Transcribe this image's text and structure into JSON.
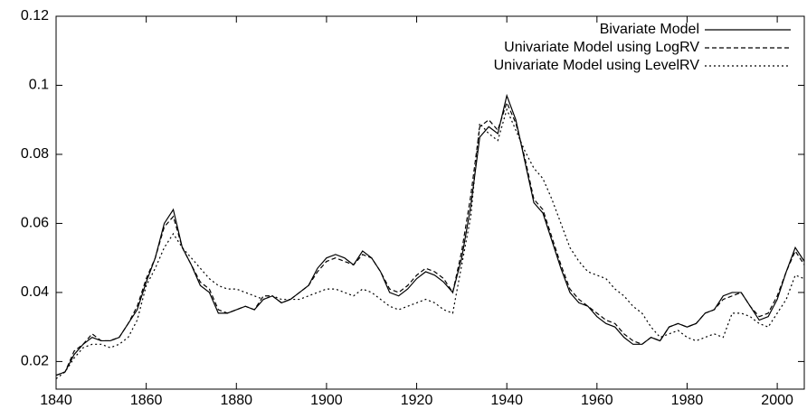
{
  "chart_data": {
    "type": "line",
    "x": [
      1840,
      1842,
      1844,
      1846,
      1848,
      1850,
      1852,
      1854,
      1856,
      1858,
      1860,
      1862,
      1864,
      1866,
      1868,
      1870,
      1872,
      1874,
      1876,
      1878,
      1880,
      1882,
      1884,
      1886,
      1888,
      1890,
      1892,
      1894,
      1896,
      1898,
      1900,
      1902,
      1904,
      1906,
      1908,
      1910,
      1912,
      1914,
      1916,
      1918,
      1920,
      1922,
      1924,
      1926,
      1928,
      1930,
      1932,
      1934,
      1936,
      1938,
      1940,
      1942,
      1944,
      1946,
      1948,
      1950,
      1952,
      1954,
      1956,
      1958,
      1960,
      1962,
      1964,
      1966,
      1968,
      1970,
      1972,
      1974,
      1976,
      1978,
      1980,
      1982,
      1984,
      1986,
      1988,
      1990,
      1992,
      1994,
      1996,
      1998,
      2000,
      2002,
      2004,
      2006
    ],
    "series": [
      {
        "name": "Bivariate Model",
        "color": "#000000",
        "dash": "solid",
        "values": [
          0.016,
          0.017,
          0.022,
          0.025,
          0.027,
          0.026,
          0.026,
          0.027,
          0.031,
          0.035,
          0.043,
          0.05,
          0.06,
          0.064,
          0.053,
          0.048,
          0.042,
          0.04,
          0.034,
          0.034,
          0.035,
          0.036,
          0.035,
          0.038,
          0.039,
          0.037,
          0.038,
          0.04,
          0.042,
          0.047,
          0.05,
          0.051,
          0.05,
          0.048,
          0.052,
          0.05,
          0.046,
          0.04,
          0.039,
          0.041,
          0.044,
          0.046,
          0.045,
          0.043,
          0.04,
          0.05,
          0.065,
          0.085,
          0.088,
          0.086,
          0.097,
          0.09,
          0.078,
          0.066,
          0.063,
          0.055,
          0.047,
          0.04,
          0.037,
          0.036,
          0.033,
          0.031,
          0.03,
          0.027,
          0.025,
          0.025,
          0.027,
          0.026,
          0.03,
          0.031,
          0.03,
          0.031,
          0.034,
          0.035,
          0.039,
          0.04,
          0.04,
          0.036,
          0.032,
          0.033,
          0.038,
          0.046,
          0.053,
          0.049
        ]
      },
      {
        "name": "Univariate Model using LogRV",
        "color": "#000000",
        "dash": "dashed",
        "values": [
          0.016,
          0.017,
          0.023,
          0.025,
          0.028,
          0.026,
          0.026,
          0.027,
          0.031,
          0.036,
          0.044,
          0.05,
          0.059,
          0.062,
          0.053,
          0.048,
          0.043,
          0.041,
          0.035,
          0.034,
          0.035,
          0.036,
          0.035,
          0.039,
          0.039,
          0.037,
          0.038,
          0.04,
          0.042,
          0.046,
          0.049,
          0.05,
          0.049,
          0.048,
          0.051,
          0.05,
          0.046,
          0.041,
          0.04,
          0.042,
          0.045,
          0.047,
          0.046,
          0.044,
          0.04,
          0.052,
          0.068,
          0.088,
          0.09,
          0.087,
          0.095,
          0.089,
          0.079,
          0.067,
          0.064,
          0.056,
          0.048,
          0.041,
          0.038,
          0.036,
          0.034,
          0.032,
          0.031,
          0.028,
          0.026,
          0.025,
          0.027,
          0.026,
          0.03,
          0.031,
          0.03,
          0.031,
          0.034,
          0.035,
          0.038,
          0.039,
          0.04,
          0.036,
          0.033,
          0.034,
          0.039,
          0.046,
          0.052,
          0.048
        ]
      },
      {
        "name": "Univariate Model using LevelRV",
        "color": "#000000",
        "dash": "dotted",
        "values": [
          0.015,
          0.017,
          0.021,
          0.024,
          0.025,
          0.025,
          0.024,
          0.025,
          0.027,
          0.032,
          0.042,
          0.047,
          0.053,
          0.057,
          0.053,
          0.05,
          0.047,
          0.044,
          0.042,
          0.041,
          0.041,
          0.04,
          0.039,
          0.038,
          0.039,
          0.038,
          0.038,
          0.038,
          0.039,
          0.04,
          0.041,
          0.041,
          0.04,
          0.039,
          0.041,
          0.04,
          0.038,
          0.036,
          0.035,
          0.036,
          0.037,
          0.038,
          0.037,
          0.035,
          0.034,
          0.048,
          0.062,
          0.089,
          0.086,
          0.084,
          0.093,
          0.087,
          0.081,
          0.076,
          0.073,
          0.067,
          0.06,
          0.053,
          0.049,
          0.046,
          0.045,
          0.044,
          0.041,
          0.039,
          0.036,
          0.034,
          0.03,
          0.027,
          0.028,
          0.029,
          0.027,
          0.026,
          0.027,
          0.028,
          0.027,
          0.034,
          0.034,
          0.033,
          0.031,
          0.03,
          0.034,
          0.038,
          0.045,
          0.044
        ]
      }
    ],
    "xlim": [
      1840,
      2006
    ],
    "ylim": [
      0.012,
      0.12
    ],
    "xticks": [
      1840,
      1860,
      1880,
      1900,
      1920,
      1940,
      1960,
      1980,
      2000
    ],
    "yticks": [
      0.02,
      0.04,
      0.06,
      0.08,
      0.1,
      0.12
    ],
    "legend": "top-right"
  }
}
